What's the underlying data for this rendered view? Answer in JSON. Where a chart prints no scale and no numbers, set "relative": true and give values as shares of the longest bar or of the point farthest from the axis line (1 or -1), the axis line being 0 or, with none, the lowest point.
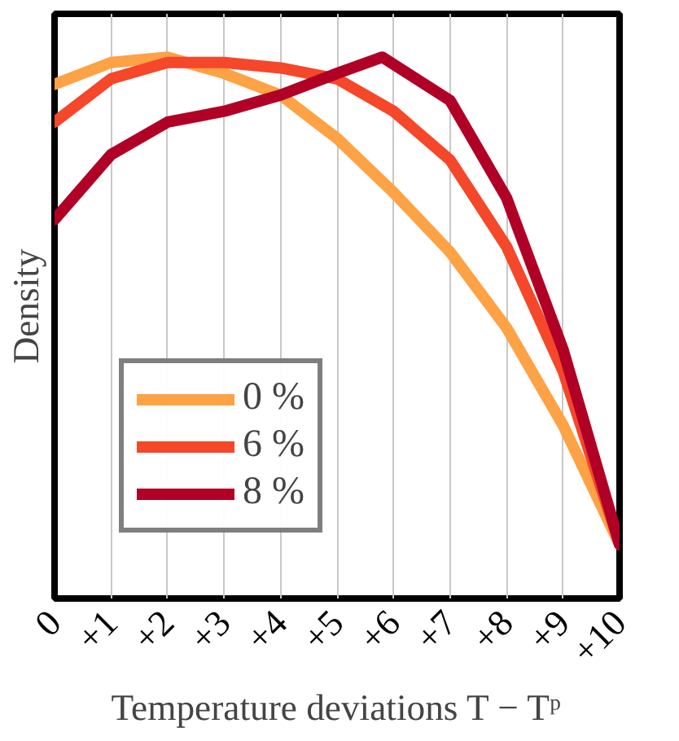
{
  "chart_data": {
    "type": "line",
    "xlabel": "Temperature deviations T − Tᵖ",
    "ylabel": "Density",
    "relative": true,
    "x": [
      0,
      1,
      2,
      3,
      4,
      5,
      6,
      7,
      8,
      9,
      10
    ],
    "xlim": [
      0,
      10
    ],
    "xticks": [
      0,
      {
        "value": 1,
        "label": "+1"
      },
      {
        "value": 2,
        "label": "+2"
      },
      {
        "value": 3,
        "label": "+3"
      },
      {
        "value": 4,
        "label": "+4"
      },
      {
        "value": 5,
        "label": "+5"
      },
      {
        "value": 6,
        "label": "+6"
      },
      {
        "value": 7,
        "label": "+7"
      },
      {
        "value": 8,
        "label": "+8"
      },
      {
        "value": 9,
        "label": "+9"
      },
      {
        "value": 10,
        "label": "+10"
      }
    ],
    "series": [
      {
        "name": "0 %",
        "color": "#fda245",
        "values": [
          0.95,
          0.99,
          1.0,
          0.97,
          0.93,
          0.85,
          0.75,
          0.64,
          0.5,
          0.32,
          0.1
        ]
      },
      {
        "name": "6 %",
        "color": "#f5472a",
        "values": [
          0.88,
          0.96,
          0.99,
          0.99,
          0.98,
          0.96,
          0.9,
          0.81,
          0.65,
          0.42,
          0.1
        ]
      },
      {
        "name": "8 %",
        "color": "#b10026",
        "x": [
          0,
          1,
          2,
          3,
          4,
          5,
          5.8,
          7,
          8,
          9,
          10
        ],
        "values": [
          0.7,
          0.82,
          0.88,
          0.9,
          0.93,
          0.97,
          1.0,
          0.92,
          0.74,
          0.46,
          0.1
        ]
      }
    ],
    "grid": "x",
    "legend": "bottom left",
    "tick_labels": "x",
    "line_style": "solid"
  }
}
